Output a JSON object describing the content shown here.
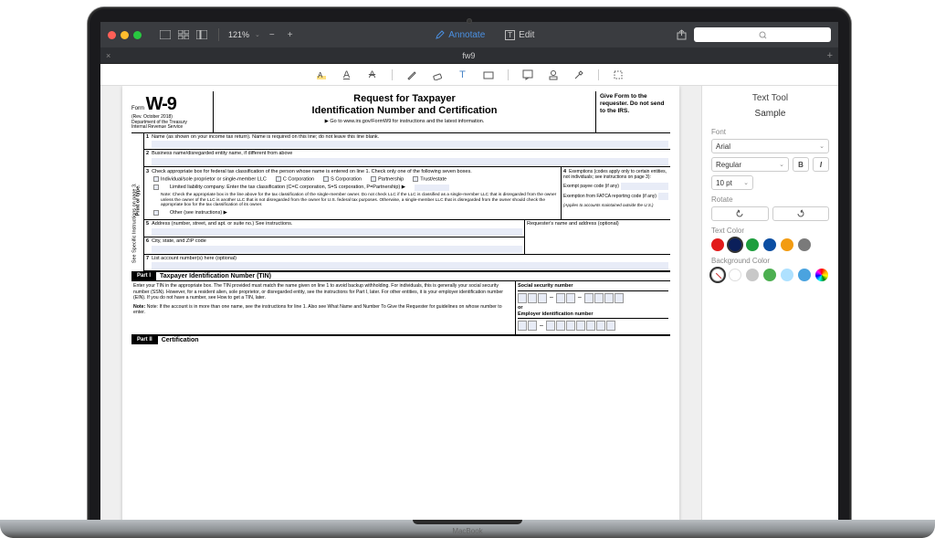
{
  "laptop": {
    "brand": "MacBook"
  },
  "traffic": {
    "close": "#ff5f57",
    "min": "#ffbd2e",
    "max": "#28c940"
  },
  "toolbar": {
    "zoom": "121%",
    "annotate_label": "Annotate",
    "edit_label": "Edit"
  },
  "tab": {
    "title": "fw9"
  },
  "inspector": {
    "title": "Text Tool",
    "sample": "Sample",
    "font_label": "Font",
    "font_family": "Arial",
    "font_style": "Regular",
    "font_size": "10 pt",
    "rotate_label": "Rotate",
    "textcolor_label": "Text Color",
    "bgcolor_label": "Background Color",
    "text_colors": [
      "#e21b1b",
      "#0b1f5a",
      "#1e9e3e",
      "#0b4ea2",
      "#f39c12",
      "#7a7a7a"
    ],
    "text_selected_index": 1,
    "bg_colors_solid": [
      "#ffffff",
      "#c8c8c8",
      "#4caf50",
      "#aee1ff",
      "#4aa3df"
    ]
  },
  "form": {
    "form_word": "Form",
    "code": "W-9",
    "rev": "(Rev. October 2018)",
    "dept": "Department of the Treasury",
    "irs": "Internal Revenue Service",
    "title1": "Request for Taxpayer",
    "title2": "Identification Number and Certification",
    "goto": "▶ Go to www.irs.gov/FormW9 for instructions and the latest information.",
    "right_text": "Give Form to the requester. Do not send to the IRS.",
    "side_main": "Print or type.",
    "side_sub": "See Specific Instructions on page 3.",
    "line1": "Name (as shown on your income tax return). Name is required on this line; do not leave this line blank.",
    "line2": "Business name/disregarded entity name, if different from above",
    "line3": "Check appropriate box for federal tax classification of the person whose name is entered on line 1. Check only one of the following seven boxes.",
    "cbx1": "Individual/sole proprietor or single-member LLC",
    "cbx2": "C Corporation",
    "cbx3": "S Corporation",
    "cbx4": "Partnership",
    "cbx5": "Trust/estate",
    "cbx6": "Limited liability company. Enter the tax classification (C=C corporation, S=S corporation, P=Partnership) ▶",
    "note3": "Note: Check the appropriate box in the line above for the tax classification of the single-member owner. Do not check LLC if the LLC is classified as a single-member LLC that is disregarded from the owner unless the owner of the LLC is another LLC that is not disregarded from the owner for U.S. federal tax purposes. Otherwise, a single-member LLC that is disregarded from the owner should check the appropriate box for the tax classification of its owner.",
    "cbx7": "Other (see instructions) ▶",
    "line4a": "Exemptions (codes apply only to certain entities, not individuals; see instructions on page 3):",
    "line4b": "Exempt payee code (if any)",
    "line4c": "Exemption from FATCA reporting code (if any)",
    "line4d": "(Applies to accounts maintained outside the U.S.)",
    "line5": "Address (number, street, and apt. or suite no.) See instructions.",
    "requester": "Requester's name and address (optional)",
    "line6": "City, state, and ZIP code",
    "line7": "List account number(s) here (optional)",
    "part1": "Part I",
    "part1_title": "Taxpayer Identification Number (TIN)",
    "tin_text": "Enter your TIN in the appropriate box. The TIN provided must match the name given on line 1 to avoid backup withholding. For individuals, this is generally your social security number (SSN). However, for a resident alien, sole proprietor, or disregarded entity, see the instructions for Part I, later. For other entities, it is your employer identification number (EIN). If you do not have a number, see How to get a TIN, later.",
    "tin_note": "Note: If the account is in more than one name, see the instructions for line 1. Also see What Name and Number To Give the Requester for guidelines on whose number to enter.",
    "ssn_label": "Social security number",
    "or": "or",
    "ein_label": "Employer identification number",
    "part2": "Part II",
    "part2_title": "Certification"
  }
}
